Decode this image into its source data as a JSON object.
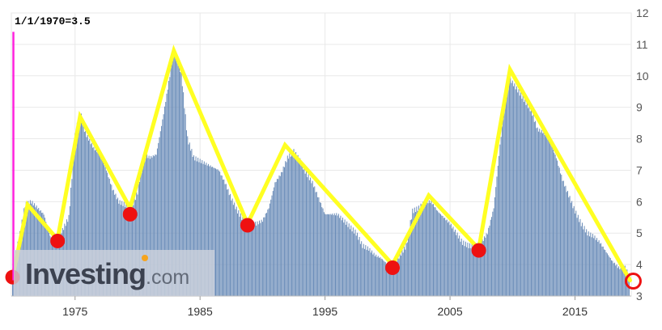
{
  "chart_data": {
    "type": "bar",
    "title": "",
    "annotation": "1/1/1970=3.5",
    "xlabel": "",
    "ylabel": "",
    "ylim": [
      3,
      12
    ],
    "xlim": [
      1969.9,
      2019.5
    ],
    "y_ticks": [
      "3",
      "4",
      "5",
      "6",
      "7",
      "8",
      "9",
      "10",
      "11",
      "12"
    ],
    "x_ticks": [
      "1975",
      "1985",
      "1995",
      "2005",
      "2015"
    ],
    "grid": true,
    "bar_color": "#6a8cb8",
    "series": [
      {
        "values_shape": "monthly bars",
        "x": [
          1970.0,
          1970.5,
          1971.0,
          1971.5,
          1972.0,
          1972.5,
          1973.0,
          1973.5,
          1974.0,
          1974.5,
          1975.0,
          1975.4,
          1975.8,
          1976.5,
          1977.0,
          1977.5,
          1978.0,
          1978.5,
          1979.0,
          1979.5,
          1980.0,
          1980.5,
          1981.0,
          1981.5,
          1982.0,
          1982.5,
          1982.9,
          1983.5,
          1984.0,
          1984.5,
          1985.0,
          1985.5,
          1986.0,
          1986.5,
          1987.0,
          1987.5,
          1988.0,
          1988.5,
          1989.0,
          1989.5,
          1990.0,
          1990.5,
          1991.0,
          1991.5,
          1992.0,
          1992.5,
          1993.0,
          1993.5,
          1994.0,
          1994.5,
          1995.0,
          1995.5,
          1996.0,
          1996.5,
          1997.0,
          1997.5,
          1998.0,
          1998.5,
          1999.0,
          1999.5,
          2000.0,
          2000.5,
          2001.0,
          2001.5,
          2002.0,
          2002.5,
          2003.0,
          2003.5,
          2004.0,
          2004.5,
          2005.0,
          2005.5,
          2006.0,
          2006.5,
          2007.0,
          2007.5,
          2008.0,
          2008.5,
          2009.0,
          2009.5,
          2009.8,
          2010.5,
          2011.0,
          2011.5,
          2012.0,
          2012.5,
          2013.0,
          2013.5,
          2014.0,
          2014.5,
          2015.0,
          2015.5,
          2016.0,
          2016.5,
          2017.0,
          2017.5,
          2018.0,
          2018.5,
          2019.0,
          2019.4
        ],
        "y": [
          3.9,
          4.8,
          5.9,
          6.0,
          5.8,
          5.6,
          4.9,
          4.8,
          5.1,
          5.5,
          8.1,
          8.9,
          8.2,
          7.7,
          7.5,
          7.0,
          6.4,
          6.0,
          5.9,
          5.8,
          6.3,
          7.5,
          7.4,
          7.5,
          8.6,
          9.8,
          10.8,
          10.1,
          8.0,
          7.4,
          7.3,
          7.2,
          7.1,
          7.0,
          6.6,
          6.1,
          5.7,
          5.4,
          5.3,
          5.3,
          5.4,
          5.8,
          6.6,
          6.9,
          7.4,
          7.6,
          7.3,
          6.9,
          6.6,
          6.1,
          5.6,
          5.6,
          5.6,
          5.4,
          5.2,
          5.0,
          4.6,
          4.5,
          4.3,
          4.2,
          4.0,
          4.0,
          4.3,
          4.6,
          5.7,
          5.8,
          6.0,
          6.0,
          5.7,
          5.5,
          5.3,
          5.0,
          4.7,
          4.6,
          4.6,
          4.7,
          5.0,
          5.8,
          7.8,
          9.5,
          9.9,
          9.5,
          9.2,
          8.9,
          8.3,
          8.2,
          7.9,
          7.4,
          6.7,
          6.2,
          5.7,
          5.3,
          5.0,
          4.9,
          4.7,
          4.4,
          4.1,
          3.9,
          3.9,
          3.6
        ]
      }
    ],
    "overlay_line": {
      "color": "#ffff22",
      "points": [
        [
          1970.0,
          3.6
        ],
        [
          1971.2,
          5.9
        ],
        [
          1973.6,
          4.8
        ],
        [
          1975.4,
          8.7
        ],
        [
          1979.4,
          5.8
        ],
        [
          1982.9,
          10.8
        ],
        [
          1988.8,
          5.3
        ],
        [
          1991.8,
          7.8
        ],
        [
          2000.4,
          4.0
        ],
        [
          2003.3,
          6.2
        ],
        [
          2007.3,
          4.5
        ],
        [
          2009.8,
          10.2
        ],
        [
          2019.4,
          3.5
        ]
      ]
    },
    "troughs": {
      "color": "#ee1111",
      "points": [
        [
          1970.0,
          3.6
        ],
        [
          1973.6,
          4.75
        ],
        [
          1979.4,
          5.6
        ],
        [
          1988.8,
          5.25
        ],
        [
          2000.4,
          3.9
        ],
        [
          2007.3,
          4.45
        ]
      ],
      "current": [
        2019.4,
        3.5
      ]
    },
    "marker_line": {
      "color": "#ff22dd",
      "x": 1970.0,
      "from_y": 3.5,
      "to_y": 11.4
    }
  },
  "watermark": {
    "text": "Investing",
    "suffix": ".com"
  }
}
